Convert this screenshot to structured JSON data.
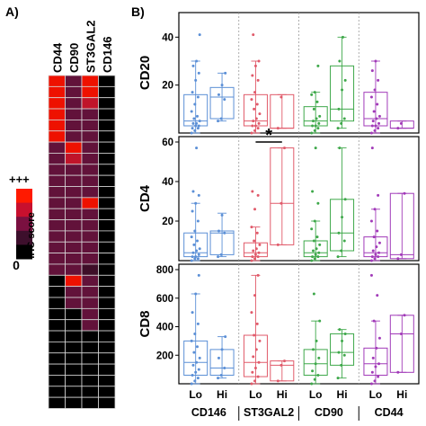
{
  "panel_a": {
    "label": "A)",
    "columns": [
      "CD44",
      "CD90",
      "ST3GAL2",
      "CD146"
    ],
    "legend": {
      "top": "+++",
      "title": "IHC score",
      "bottom": "0"
    },
    "legend_colors": [
      "#ff1a00",
      "#c8102e",
      "#7a1040",
      "#3d0f2c",
      "#000000"
    ],
    "score_colors": {
      "3": "#ee1100",
      "2": "#c0142a",
      "1.5": "#8e1238",
      "1": "#62123a",
      "0.5": "#3e0e28",
      "0": "#000000"
    }
  },
  "panel_b": {
    "label": "B)",
    "significance_mark": "*",
    "group_labels": [
      "CD146",
      "ST3GAL2",
      "CD90",
      "CD44"
    ],
    "x_labels": [
      "Lo",
      "Hi",
      "Lo",
      "Hi",
      "Lo",
      "Hi",
      "Lo",
      "Hi"
    ],
    "group_colors": [
      "#5b8fd6",
      "#e05a6a",
      "#3ea84a",
      "#a13ab8"
    ]
  },
  "chart_data": [
    {
      "type": "heatmap",
      "columns": [
        "CD44",
        "CD90",
        "ST3GAL2",
        "CD146"
      ],
      "value_scale": "IHC score (0 to +++)",
      "rows": [
        [
          3,
          1,
          3,
          0
        ],
        [
          3,
          1,
          3,
          0
        ],
        [
          3,
          1,
          2,
          0
        ],
        [
          3,
          1,
          1,
          0
        ],
        [
          3,
          1,
          1,
          0
        ],
        [
          3,
          1,
          1,
          0
        ],
        [
          1,
          3,
          1,
          0
        ],
        [
          1,
          2,
          1,
          0
        ],
        [
          1,
          1,
          1,
          0
        ],
        [
          1,
          1,
          1,
          0
        ],
        [
          1,
          1,
          1,
          0
        ],
        [
          1,
          1,
          3,
          0
        ],
        [
          1,
          1,
          1,
          0
        ],
        [
          1,
          1,
          1,
          0
        ],
        [
          1,
          1,
          1,
          0
        ],
        [
          1,
          1,
          1,
          0
        ],
        [
          1,
          1,
          1,
          0
        ],
        [
          1,
          1,
          0.5,
          0
        ],
        [
          0,
          3,
          1,
          0
        ],
        [
          0,
          1,
          1,
          0
        ],
        [
          0,
          1,
          1,
          0
        ],
        [
          0,
          0,
          1,
          0
        ],
        [
          0,
          0,
          1,
          0
        ],
        [
          0,
          0,
          0,
          0
        ],
        [
          0,
          0,
          0,
          0
        ],
        [
          0,
          0,
          0,
          0
        ],
        [
          0,
          0,
          0,
          0
        ],
        [
          0,
          0,
          0,
          0
        ],
        [
          0,
          0,
          0,
          0
        ],
        [
          0,
          0,
          0,
          0
        ]
      ]
    },
    {
      "type": "box",
      "ylabel": "CD20",
      "ylim": [
        0,
        48
      ],
      "yticks": [
        20,
        40
      ],
      "groups": [
        "CD146",
        "ST3GAL2",
        "CD90",
        "CD44"
      ],
      "categories": [
        "Lo",
        "Hi",
        "Lo",
        "Hi",
        "Lo",
        "Hi",
        "Lo",
        "Hi"
      ],
      "series": [
        {
          "group": "CD146",
          "category": "Lo",
          "min": 0,
          "q1": 3,
          "median": 5,
          "q3": 16,
          "max": 30,
          "points": [
            0,
            1,
            2,
            2,
            3,
            3,
            4,
            4,
            5,
            6,
            7,
            9,
            12,
            15,
            17,
            22,
            25,
            28,
            30,
            41
          ]
        },
        {
          "group": "CD146",
          "category": "Hi",
          "min": 5,
          "q1": 6,
          "median": 15,
          "q3": 19,
          "max": 25,
          "points": [
            5,
            6,
            14,
            16,
            20,
            25
          ]
        },
        {
          "group": "ST3GAL2",
          "category": "Lo",
          "min": 0,
          "q1": 3,
          "median": 5,
          "q3": 16,
          "max": 30,
          "points": [
            0,
            1,
            2,
            3,
            3,
            4,
            5,
            6,
            8,
            10,
            12,
            14,
            17,
            22,
            24,
            28,
            30,
            41
          ]
        },
        {
          "group": "ST3GAL2",
          "category": "Hi",
          "min": 2,
          "q1": 2,
          "median": 2,
          "q3": 16,
          "max": 16,
          "points": [
            2,
            15
          ]
        },
        {
          "group": "CD90",
          "category": "Lo",
          "min": 0,
          "q1": 3,
          "median": 5,
          "q3": 11,
          "max": 17,
          "points": [
            0,
            1,
            2,
            3,
            3,
            4,
            5,
            6,
            7,
            10,
            13,
            16,
            17,
            28
          ]
        },
        {
          "group": "CD90",
          "category": "Hi",
          "min": 2,
          "q1": 5,
          "median": 10,
          "q3": 28,
          "max": 40,
          "points": [
            2,
            4,
            6,
            10,
            18,
            22,
            30,
            40
          ]
        },
        {
          "group": "CD44",
          "category": "Lo",
          "min": 0,
          "q1": 3,
          "median": 6,
          "q3": 17,
          "max": 30,
          "points": [
            0,
            1,
            2,
            3,
            3,
            4,
            5,
            6,
            7,
            9,
            12,
            15,
            18,
            22,
            26,
            30
          ]
        },
        {
          "group": "CD44",
          "category": "Hi",
          "min": 2,
          "q1": 2,
          "median": 2,
          "q3": 5,
          "max": 5,
          "points": [
            2,
            4
          ]
        }
      ]
    },
    {
      "type": "box",
      "ylabel": "CD4",
      "ylim": [
        0,
        60
      ],
      "yticks": [
        20,
        40,
        60
      ],
      "groups": [
        "CD146",
        "ST3GAL2",
        "CD90",
        "CD44"
      ],
      "categories": [
        "Lo",
        "Hi",
        "Lo",
        "Hi",
        "Lo",
        "Hi",
        "Lo",
        "Hi"
      ],
      "annotations": [
        {
          "text": "*",
          "between": [
            "ST3GAL2 Lo",
            "ST3GAL2 Hi"
          ]
        }
      ],
      "series": [
        {
          "group": "CD146",
          "category": "Lo",
          "min": 0,
          "q1": 2,
          "median": 4,
          "q3": 14,
          "max": 29,
          "points": [
            0,
            1,
            1,
            2,
            2,
            3,
            4,
            5,
            6,
            8,
            10,
            12,
            15,
            20,
            25,
            29,
            33,
            35,
            57
          ]
        },
        {
          "group": "CD146",
          "category": "Hi",
          "min": 2,
          "q1": 3,
          "median": 14,
          "q3": 15,
          "max": 24,
          "points": [
            2,
            3,
            14,
            15,
            23
          ]
        },
        {
          "group": "ST3GAL2",
          "category": "Lo",
          "min": 0,
          "q1": 2,
          "median": 4,
          "q3": 9,
          "max": 17,
          "points": [
            0,
            1,
            2,
            2,
            3,
            4,
            5,
            6,
            8,
            10,
            14,
            17,
            26,
            33,
            35
          ]
        },
        {
          "group": "ST3GAL2",
          "category": "Hi",
          "min": 8,
          "q1": 8,
          "median": 29,
          "q3": 57,
          "max": 57,
          "points": [
            8,
            29,
            57
          ]
        },
        {
          "group": "CD90",
          "category": "Lo",
          "min": 0,
          "q1": 2,
          "median": 4,
          "q3": 10,
          "max": 20,
          "points": [
            0,
            1,
            2,
            2,
            3,
            4,
            5,
            6,
            8,
            10,
            12,
            16,
            20,
            29,
            35,
            57
          ]
        },
        {
          "group": "CD90",
          "category": "Hi",
          "min": 2,
          "q1": 5,
          "median": 14,
          "q3": 31,
          "max": 57,
          "points": [
            2,
            5,
            10,
            14,
            22,
            31,
            57
          ]
        },
        {
          "group": "CD44",
          "category": "Lo",
          "min": 0,
          "q1": 2,
          "median": 4,
          "q3": 12,
          "max": 26,
          "points": [
            0,
            1,
            2,
            2,
            3,
            4,
            5,
            7,
            9,
            12,
            15,
            20,
            26,
            33,
            57
          ]
        },
        {
          "group": "CD44",
          "category": "Hi",
          "min": 1,
          "q1": 1,
          "median": 3,
          "q3": 34,
          "max": 34,
          "points": [
            1,
            3,
            34
          ]
        }
      ]
    },
    {
      "type": "box",
      "ylabel": "CD8",
      "ylim": [
        0,
        800
      ],
      "yticks": [
        200,
        400,
        600,
        800
      ],
      "xlabels": [
        "Lo",
        "Hi",
        "Lo",
        "Hi",
        "Lo",
        "Hi",
        "Lo",
        "Hi"
      ],
      "group_labels": [
        "CD146",
        "ST3GAL2",
        "CD90",
        "CD44"
      ],
      "series": [
        {
          "group": "CD146",
          "category": "Lo",
          "min": 0,
          "q1": 60,
          "median": 150,
          "q3": 300,
          "max": 630,
          "points": [
            0,
            20,
            40,
            60,
            80,
            100,
            130,
            150,
            180,
            220,
            260,
            300,
            350,
            420,
            500,
            630,
            760
          ]
        },
        {
          "group": "CD146",
          "category": "Hi",
          "min": 40,
          "q1": 60,
          "median": 110,
          "q3": 240,
          "max": 330,
          "points": [
            40,
            60,
            110,
            180,
            240,
            330
          ]
        },
        {
          "group": "ST3GAL2",
          "category": "Lo",
          "min": 0,
          "q1": 50,
          "median": 150,
          "q3": 340,
          "max": 760,
          "points": [
            0,
            20,
            50,
            80,
            110,
            150,
            190,
            240,
            300,
            340,
            420,
            500,
            620,
            760
          ]
        },
        {
          "group": "ST3GAL2",
          "category": "Hi",
          "min": 20,
          "q1": 20,
          "median": 130,
          "q3": 160,
          "max": 160,
          "points": [
            20,
            130,
            160
          ]
        },
        {
          "group": "CD90",
          "category": "Lo",
          "min": 0,
          "q1": 60,
          "median": 140,
          "q3": 240,
          "max": 440,
          "points": [
            0,
            30,
            60,
            90,
            140,
            180,
            240,
            300,
            440,
            630
          ]
        },
        {
          "group": "CD90",
          "category": "Hi",
          "min": 40,
          "q1": 130,
          "median": 220,
          "q3": 350,
          "max": 380,
          "points": [
            40,
            130,
            200,
            220,
            300,
            350,
            380
          ]
        },
        {
          "group": "CD44",
          "category": "Lo",
          "min": 0,
          "q1": 60,
          "median": 140,
          "q3": 250,
          "max": 440,
          "points": [
            0,
            20,
            50,
            80,
            120,
            140,
            180,
            250,
            320,
            440,
            620,
            760
          ]
        },
        {
          "group": "CD44",
          "category": "Hi",
          "min": 80,
          "q1": 80,
          "median": 350,
          "q3": 480,
          "max": 480,
          "points": [
            80,
            350,
            480
          ]
        }
      ]
    }
  ]
}
